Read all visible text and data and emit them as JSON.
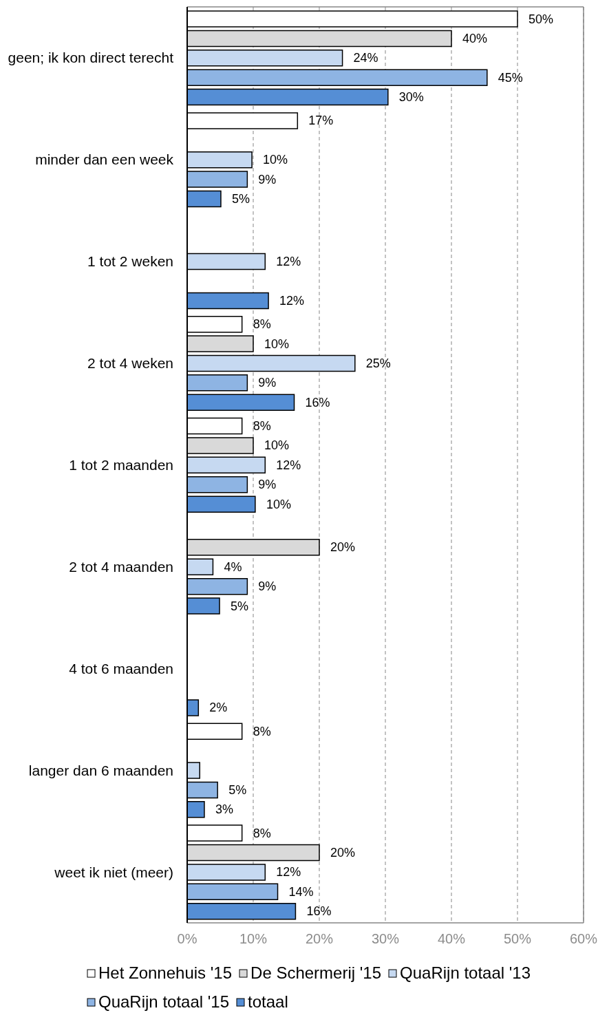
{
  "chart_data": {
    "type": "bar",
    "orientation": "horizontal",
    "categories": [
      "geen; ik kon direct terecht",
      "minder dan een week",
      "1 tot 2 weken",
      "2 tot 4 weken",
      "1 tot 2 maanden",
      "2 tot 4 maanden",
      "4 tot 6 maanden",
      "langer dan 6 maanden",
      "weet ik niet (meer)"
    ],
    "series": [
      {
        "name": "Het Zonnehuis '15",
        "color": "#ffffff",
        "values": [
          50,
          16.7,
          null,
          8.3,
          8.3,
          null,
          null,
          8.3,
          8.3
        ],
        "value_labels": [
          "50%",
          "17%",
          null,
          "8%",
          "8%",
          null,
          null,
          "8%",
          "8%"
        ]
      },
      {
        "name": "De Schermerij '15",
        "color": "#d9d9d9",
        "values": [
          40,
          null,
          null,
          10,
          10,
          20,
          null,
          null,
          20
        ],
        "value_labels": [
          "40%",
          null,
          null,
          "10%",
          "10%",
          "20%",
          null,
          null,
          "20%"
        ]
      },
      {
        "name": "QuaRijn totaal '13",
        "color": "#c6d9f1",
        "values": [
          23.5,
          9.8,
          11.8,
          25.4,
          11.8,
          3.9,
          null,
          1.9,
          11.8
        ],
        "value_labels": [
          "24%",
          "10%",
          "12%",
          "25%",
          "12%",
          "4%",
          null,
          null,
          "12%"
        ]
      },
      {
        "name": "QuaRijn totaal '15",
        "color": "#8eb4e3",
        "values": [
          45.4,
          9.1,
          null,
          9.1,
          9.1,
          9.1,
          null,
          4.6,
          13.7
        ],
        "value_labels": [
          "45%",
          "9%",
          null,
          "9%",
          "9%",
          "9%",
          null,
          "5%",
          "14%"
        ]
      },
      {
        "name": "totaal",
        "color": "#558ed5",
        "values": [
          30.4,
          5.1,
          12.3,
          16.2,
          10.3,
          4.9,
          1.7,
          2.6,
          16.4
        ],
        "value_labels": [
          "30%",
          "5%",
          "12%",
          "16%",
          "10%",
          "5%",
          "2%",
          "3%",
          "16%"
        ]
      }
    ],
    "xlim": [
      0,
      60
    ],
    "xticks": [
      {
        "value": 0,
        "label": "0%"
      },
      {
        "value": 10,
        "label": "10%"
      },
      {
        "value": 20,
        "label": "20%"
      },
      {
        "value": 30,
        "label": "30%"
      },
      {
        "value": 40,
        "label": "40%"
      },
      {
        "value": 50,
        "label": "50%"
      },
      {
        "value": 60,
        "label": "60%"
      }
    ],
    "grid": "x",
    "legend": "bottom"
  }
}
